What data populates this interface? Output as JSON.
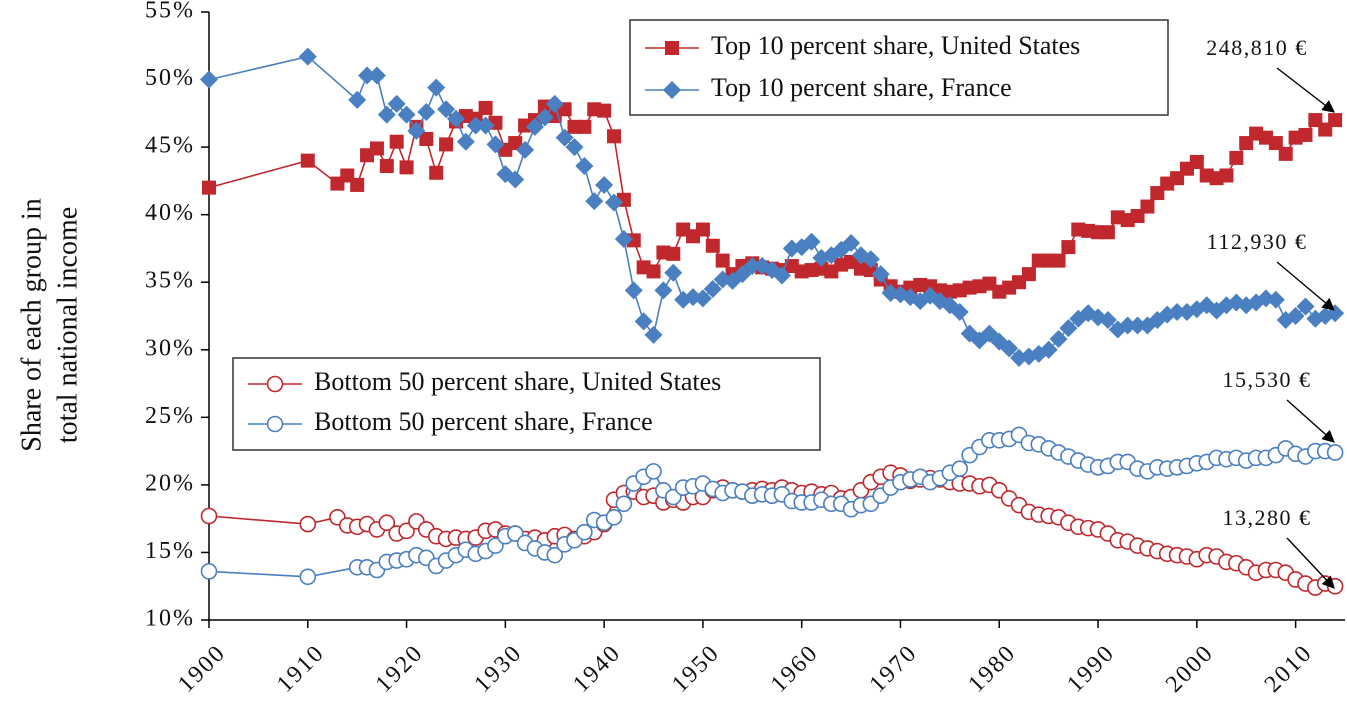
{
  "chart_data": {
    "type": "line",
    "ylabel": [
      "Share of each group in",
      "total national income"
    ],
    "xlim": [
      1900,
      2015
    ],
    "ylim": [
      10,
      55
    ],
    "xticks": [
      1900,
      1910,
      1920,
      1930,
      1940,
      1950,
      1960,
      1970,
      1980,
      1990,
      2000,
      2010
    ],
    "yticks": [
      {
        "value": 10,
        "label": "10%"
      },
      {
        "value": 15,
        "label": "15%"
      },
      {
        "value": 20,
        "label": "20%"
      },
      {
        "value": 25,
        "label": "25%"
      },
      {
        "value": 30,
        "label": "30%"
      },
      {
        "value": 35,
        "label": "35%"
      },
      {
        "value": 40,
        "label": "40%"
      },
      {
        "value": 45,
        "label": "45%"
      },
      {
        "value": 50,
        "label": "50%"
      },
      {
        "value": 55,
        "label": "55%"
      }
    ],
    "grid": false,
    "annotations": [
      "248,810 €",
      "112,930 €",
      "15,530 €",
      "13,280 €"
    ],
    "series": [
      {
        "name": "Top 10 percent share, United States",
        "color": "#c0282d",
        "marker": "square",
        "x": [
          1900,
          1910,
          1913,
          1914,
          1915,
          1916,
          1917,
          1918,
          1919,
          1920,
          1921,
          1922,
          1923,
          1924,
          1925,
          1926,
          1927,
          1928,
          1929,
          1930,
          1931,
          1932,
          1933,
          1934,
          1935,
          1936,
          1937,
          1938,
          1939,
          1940,
          1941,
          1942,
          1943,
          1944,
          1945,
          1946,
          1947,
          1948,
          1949,
          1950,
          1951,
          1952,
          1953,
          1954,
          1955,
          1956,
          1957,
          1958,
          1959,
          1960,
          1961,
          1962,
          1963,
          1964,
          1965,
          1966,
          1967,
          1968,
          1969,
          1970,
          1971,
          1972,
          1973,
          1974,
          1975,
          1976,
          1977,
          1978,
          1979,
          1980,
          1981,
          1982,
          1983,
          1984,
          1985,
          1986,
          1987,
          1988,
          1989,
          1990,
          1991,
          1992,
          1993,
          1994,
          1995,
          1996,
          1997,
          1998,
          1999,
          2000,
          2001,
          2002,
          2003,
          2004,
          2005,
          2006,
          2007,
          2008,
          2009,
          2010,
          2011,
          2012,
          2013,
          2014
        ],
        "values": [
          42.0,
          44.0,
          42.3,
          42.9,
          42.2,
          44.4,
          44.9,
          43.6,
          45.4,
          43.5,
          46.5,
          45.6,
          43.1,
          45.2,
          46.9,
          47.3,
          47.1,
          47.9,
          46.8,
          44.8,
          45.3,
          46.6,
          47.0,
          48.0,
          47.3,
          47.8,
          46.5,
          46.5,
          47.8,
          47.7,
          45.8,
          41.1,
          38.1,
          36.1,
          35.8,
          37.2,
          37.1,
          38.9,
          38.4,
          38.9,
          37.7,
          36.6,
          35.6,
          36.2,
          36.4,
          36.1,
          36.0,
          35.9,
          36.2,
          35.8,
          35.9,
          36.0,
          35.8,
          36.3,
          36.5,
          36.0,
          35.9,
          35.2,
          34.7,
          34.3,
          34.6,
          34.8,
          34.7,
          34.4,
          34.3,
          34.4,
          34.6,
          34.7,
          34.9,
          34.3,
          34.6,
          35.0,
          35.6,
          36.6,
          36.6,
          36.6,
          37.6,
          38.9,
          38.8,
          38.7,
          38.7,
          39.8,
          39.6,
          39.9,
          40.6,
          41.6,
          42.3,
          42.7,
          43.4,
          43.9,
          42.9,
          42.7,
          42.9,
          44.2,
          45.3,
          46.0,
          45.7,
          45.3,
          44.5,
          45.7,
          45.9,
          47.0,
          46.3,
          47.0
        ]
      },
      {
        "name": "Top 10 percent share, France",
        "color": "#4a7fc1",
        "marker": "diamond",
        "x": [
          1900,
          1910,
          1915,
          1916,
          1917,
          1918,
          1919,
          1920,
          1921,
          1922,
          1923,
          1924,
          1925,
          1926,
          1927,
          1928,
          1929,
          1930,
          1931,
          1932,
          1933,
          1934,
          1935,
          1936,
          1937,
          1938,
          1939,
          1940,
          1941,
          1942,
          1943,
          1944,
          1945,
          1946,
          1947,
          1948,
          1949,
          1950,
          1951,
          1952,
          1953,
          1954,
          1955,
          1956,
          1957,
          1958,
          1959,
          1960,
          1961,
          1962,
          1963,
          1964,
          1965,
          1966,
          1967,
          1968,
          1969,
          1970,
          1971,
          1972,
          1973,
          1974,
          1975,
          1976,
          1977,
          1978,
          1979,
          1980,
          1981,
          1982,
          1983,
          1984,
          1985,
          1986,
          1987,
          1988,
          1989,
          1990,
          1991,
          1992,
          1993,
          1994,
          1995,
          1996,
          1997,
          1998,
          1999,
          2000,
          2001,
          2002,
          2003,
          2004,
          2005,
          2006,
          2007,
          2008,
          2009,
          2010,
          2011,
          2012,
          2013,
          2014
        ],
        "values": [
          50.0,
          51.7,
          48.5,
          50.3,
          50.3,
          47.4,
          48.2,
          47.4,
          46.2,
          47.6,
          49.4,
          47.8,
          47.1,
          45.4,
          46.6,
          46.6,
          45.2,
          43.0,
          42.6,
          44.8,
          46.5,
          47.2,
          48.2,
          45.7,
          45.0,
          43.6,
          41.0,
          42.2,
          40.9,
          38.2,
          34.4,
          32.1,
          31.1,
          34.4,
          35.7,
          33.7,
          33.9,
          33.8,
          34.5,
          35.2,
          35.1,
          35.6,
          36.2,
          36.2,
          35.9,
          35.5,
          37.5,
          37.6,
          38.0,
          36.8,
          37.0,
          37.4,
          37.9,
          37.0,
          36.7,
          35.6,
          34.2,
          34.1,
          33.9,
          33.6,
          34.0,
          33.6,
          33.3,
          32.8,
          31.2,
          30.7,
          31.2,
          30.6,
          30.1,
          29.4,
          29.5,
          29.7,
          30.0,
          30.8,
          31.6,
          32.3,
          32.7,
          32.4,
          32.2,
          31.5,
          31.8,
          31.8,
          31.8,
          32.2,
          32.6,
          32.8,
          32.8,
          33.0,
          33.3,
          32.9,
          33.3,
          33.5,
          33.3,
          33.5,
          33.8,
          33.7,
          32.2,
          32.5,
          33.2,
          32.3,
          32.5,
          32.7
        ]
      },
      {
        "name": "Bottom 50 percent share, United States",
        "color": "#c0282d",
        "marker": "circle",
        "x": [
          1900,
          1910,
          1913,
          1914,
          1915,
          1916,
          1917,
          1918,
          1919,
          1920,
          1921,
          1922,
          1923,
          1924,
          1925,
          1926,
          1927,
          1928,
          1929,
          1930,
          1931,
          1932,
          1933,
          1934,
          1935,
          1936,
          1937,
          1938,
          1939,
          1940,
          1941,
          1942,
          1943,
          1944,
          1945,
          1946,
          1947,
          1948,
          1949,
          1950,
          1951,
          1952,
          1953,
          1954,
          1955,
          1956,
          1957,
          1958,
          1959,
          1960,
          1961,
          1962,
          1963,
          1964,
          1965,
          1966,
          1967,
          1968,
          1969,
          1970,
          1971,
          1972,
          1973,
          1974,
          1975,
          1976,
          1977,
          1978,
          1979,
          1980,
          1981,
          1982,
          1983,
          1984,
          1985,
          1986,
          1987,
          1988,
          1989,
          1990,
          1991,
          1992,
          1993,
          1994,
          1995,
          1996,
          1997,
          1998,
          1999,
          2000,
          2001,
          2002,
          2003,
          2004,
          2005,
          2006,
          2007,
          2008,
          2009,
          2010,
          2011,
          2012,
          2013,
          2014
        ],
        "values": [
          17.7,
          17.1,
          17.6,
          17.0,
          16.9,
          17.1,
          16.7,
          17.2,
          16.4,
          16.6,
          17.3,
          16.7,
          16.2,
          16.0,
          16.1,
          16.0,
          16.1,
          16.6,
          16.7,
          16.4,
          16.4,
          16.0,
          16.1,
          15.9,
          16.2,
          16.3,
          16.0,
          16.2,
          16.5,
          17.1,
          18.9,
          19.4,
          19.5,
          19.1,
          19.2,
          18.7,
          18.9,
          18.7,
          19.1,
          19.1,
          19.6,
          19.8,
          19.6,
          19.5,
          19.6,
          19.7,
          19.6,
          19.8,
          19.6,
          19.4,
          19.5,
          19.3,
          19.4,
          19.0,
          19.1,
          19.6,
          20.2,
          20.6,
          20.9,
          20.7,
          20.3,
          20.4,
          20.5,
          20.4,
          20.2,
          20.1,
          20.1,
          19.9,
          20.0,
          19.6,
          19.0,
          18.5,
          18.0,
          17.8,
          17.7,
          17.6,
          17.2,
          16.9,
          16.8,
          16.7,
          16.4,
          15.9,
          15.8,
          15.5,
          15.3,
          15.1,
          14.9,
          14.8,
          14.7,
          14.5,
          14.8,
          14.7,
          14.3,
          14.2,
          13.9,
          13.5,
          13.7,
          13.7,
          13.5,
          13.0,
          12.7,
          12.4,
          12.7,
          12.5
        ]
      },
      {
        "name": "Bottom 50 percent share, France",
        "color": "#4a7fc1",
        "marker": "circle",
        "x": [
          1900,
          1910,
          1915,
          1916,
          1917,
          1918,
          1919,
          1920,
          1921,
          1922,
          1923,
          1924,
          1925,
          1926,
          1927,
          1928,
          1929,
          1930,
          1931,
          1932,
          1933,
          1934,
          1935,
          1936,
          1937,
          1938,
          1939,
          1940,
          1941,
          1942,
          1943,
          1944,
          1945,
          1946,
          1947,
          1948,
          1949,
          1950,
          1951,
          1952,
          1953,
          1954,
          1955,
          1956,
          1957,
          1958,
          1959,
          1960,
          1961,
          1962,
          1963,
          1964,
          1965,
          1966,
          1967,
          1968,
          1969,
          1970,
          1971,
          1972,
          1973,
          1974,
          1975,
          1976,
          1977,
          1978,
          1979,
          1980,
          1981,
          1982,
          1983,
          1984,
          1985,
          1986,
          1987,
          1988,
          1989,
          1990,
          1991,
          1992,
          1993,
          1994,
          1995,
          1996,
          1997,
          1998,
          1999,
          2000,
          2001,
          2002,
          2003,
          2004,
          2005,
          2006,
          2007,
          2008,
          2009,
          2010,
          2011,
          2012,
          2013,
          2014
        ],
        "values": [
          13.6,
          13.2,
          13.9,
          13.9,
          13.7,
          14.3,
          14.4,
          14.5,
          14.8,
          14.6,
          14.0,
          14.4,
          14.8,
          15.2,
          14.9,
          15.1,
          15.5,
          16.2,
          16.4,
          15.7,
          15.3,
          15.0,
          14.8,
          15.6,
          15.9,
          16.5,
          17.4,
          17.2,
          17.6,
          18.6,
          20.1,
          20.6,
          21.0,
          19.6,
          19.1,
          19.8,
          19.9,
          20.1,
          19.7,
          19.4,
          19.6,
          19.5,
          19.2,
          19.3,
          19.2,
          19.3,
          18.8,
          18.7,
          18.7,
          18.9,
          18.6,
          18.6,
          18.2,
          18.5,
          18.6,
          19.2,
          19.8,
          20.2,
          20.4,
          20.6,
          20.2,
          20.5,
          20.9,
          21.2,
          22.2,
          22.8,
          23.3,
          23.3,
          23.4,
          23.7,
          23.1,
          23.0,
          22.7,
          22.4,
          22.1,
          21.8,
          21.5,
          21.3,
          21.4,
          21.7,
          21.7,
          21.2,
          21.0,
          21.3,
          21.2,
          21.3,
          21.4,
          21.6,
          21.7,
          22.0,
          21.9,
          22.0,
          21.8,
          22.0,
          22.0,
          22.2,
          22.7,
          22.3,
          22.1,
          22.5,
          22.5,
          22.4
        ]
      }
    ]
  }
}
